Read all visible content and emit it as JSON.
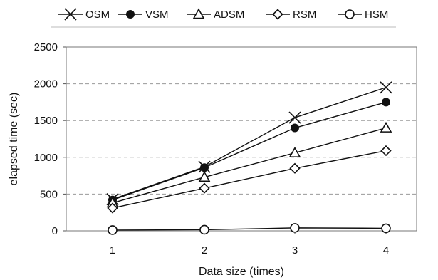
{
  "chart_data": {
    "type": "line",
    "title": "",
    "xlabel": "Data size (times)",
    "ylabel": "elapsed time (sec)",
    "x": [
      1,
      2,
      3,
      4
    ],
    "xticks": [
      "1",
      "2",
      "3",
      "4"
    ],
    "ylim": [
      0,
      2500
    ],
    "yticks": [
      "0",
      "500",
      "1000",
      "1500",
      "2000",
      "2500"
    ],
    "grid": "horizontal dashed",
    "legend_position": "top",
    "series": [
      {
        "name": "OSM",
        "marker": "x",
        "values": [
          430,
          870,
          1540,
          1950
        ]
      },
      {
        "name": "VSM",
        "marker": "circle-filled",
        "values": [
          420,
          860,
          1400,
          1750
        ]
      },
      {
        "name": "ADSM",
        "marker": "triangle",
        "values": [
          380,
          730,
          1060,
          1400
        ]
      },
      {
        "name": "RSM",
        "marker": "diamond",
        "values": [
          310,
          580,
          850,
          1090
        ]
      },
      {
        "name": "HSM",
        "marker": "circle-open",
        "values": [
          10,
          15,
          40,
          35
        ]
      }
    ],
    "line_color": "#111111"
  }
}
